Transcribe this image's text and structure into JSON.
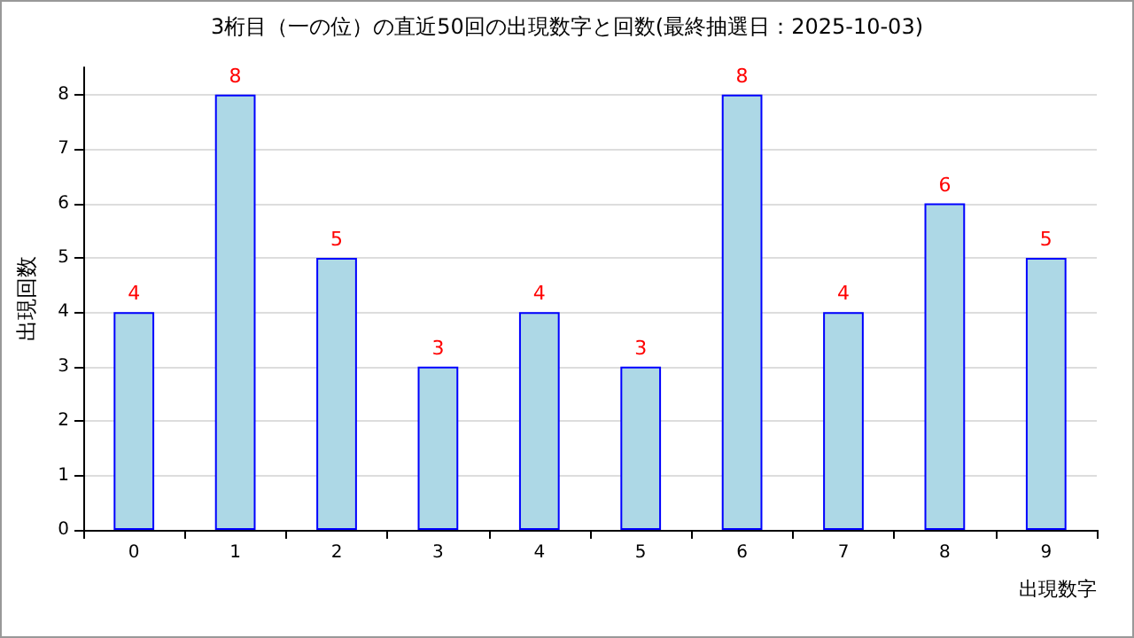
{
  "chart_data": {
    "type": "bar",
    "title": "3桁目（一の位）の直近50回の出現数字と回数(最終抽選日：2025-10-03)",
    "xlabel": "出現数字",
    "ylabel": "出現回数",
    "categories": [
      "0",
      "1",
      "2",
      "3",
      "4",
      "5",
      "6",
      "7",
      "8",
      "9"
    ],
    "values": [
      4,
      8,
      5,
      3,
      4,
      3,
      8,
      4,
      6,
      5
    ],
    "color": "#add8e6",
    "ylim": [
      0,
      8.5
    ],
    "yticks": [
      0,
      1,
      2,
      3,
      4,
      5,
      6,
      7,
      8
    ],
    "grid": "y",
    "data_labels": true
  }
}
